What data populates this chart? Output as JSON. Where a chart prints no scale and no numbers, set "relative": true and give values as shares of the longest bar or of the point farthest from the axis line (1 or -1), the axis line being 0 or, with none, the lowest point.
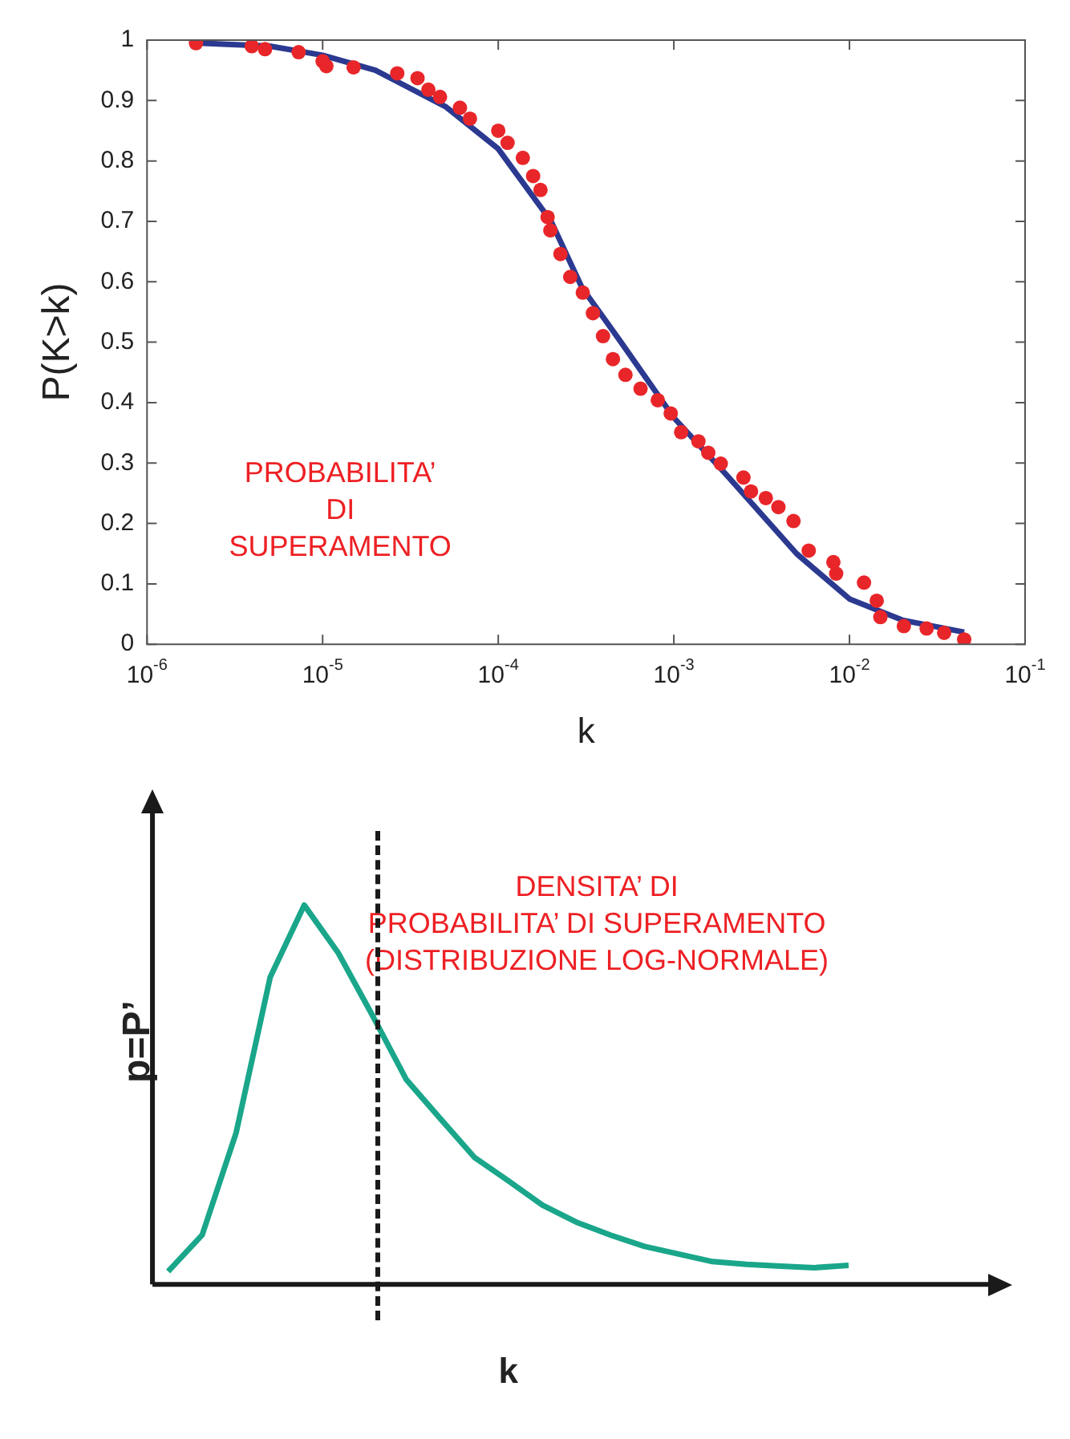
{
  "chart_data": [
    {
      "type": "scatter",
      "xlabel": "k",
      "ylabel": "P(K>k)",
      "log": "x",
      "grid": false,
      "legend": false,
      "xlim": [
        1e-06,
        0.1
      ],
      "xticks": [
        {
          "value": 1e-06,
          "label": "10$^{-6}$"
        },
        {
          "value": 1e-05,
          "label": "10$^{-5}$"
        },
        {
          "value": 0.0001,
          "label": "10$^{-4}$"
        },
        {
          "value": 0.001,
          "label": "10$^{-3}$"
        },
        {
          "value": 0.01,
          "label": "10$^{-2}$"
        },
        {
          "value": 0.1,
          "label": "10$^{-1}$"
        }
      ],
      "ylim": [
        0,
        1
      ],
      "yticks": [
        0,
        0.1,
        0.2,
        0.3,
        0.4,
        0.5,
        0.6,
        0.7,
        0.8,
        0.9,
        1
      ],
      "annotations": [
        "PROBABILITA’\nDI\nSUPERAMENTO"
      ],
      "series": [
        {
          "marker": "circle",
          "color": "#e8262a",
          "x": [
            1.9e-06,
            3.95e-06,
            4.7e-06,
            7.3e-06,
            1e-05,
            1.05e-05,
            1.5e-05,
            2.66e-05,
            3.47e-05,
            4e-05,
            4.66e-05,
            6.05e-05,
            6.9e-05,
            0.0001,
            0.000113,
            0.000138,
            0.000158,
            0.000174,
            0.000191,
            0.000198,
            0.000226,
            0.000257,
            0.000303,
            0.000346,
            0.000395,
            0.00045,
            0.00053,
            0.000646,
            0.00081,
            0.00096,
            0.0011,
            0.00138,
            0.00157,
            0.00185,
            0.00249,
            0.00275,
            0.00334,
            0.00394,
            0.0048,
            0.00586,
            0.0081,
            0.0084,
            0.0121,
            0.0143,
            0.015,
            0.0204,
            0.0275,
            0.0346,
            0.045
          ],
          "values": [
            0.995,
            0.99,
            0.985,
            0.98,
            0.965,
            0.957,
            0.955,
            0.945,
            0.937,
            0.918,
            0.906,
            0.888,
            0.87,
            0.85,
            0.83,
            0.805,
            0.775,
            0.752,
            0.707,
            0.685,
            0.646,
            0.608,
            0.582,
            0.548,
            0.51,
            0.472,
            0.446,
            0.423,
            0.404,
            0.382,
            0.351,
            0.336,
            0.317,
            0.299,
            0.276,
            0.253,
            0.242,
            0.227,
            0.204,
            0.155,
            0.136,
            0.117,
            0.102,
            0.072,
            0.045,
            0.03,
            0.026,
            0.019,
            0.008
          ]
        },
        {
          "type": "line",
          "marker": "none",
          "line_style": "solid",
          "color": "#2b3990",
          "x": [
            2e-06,
            5e-06,
            1e-05,
            2e-05,
            5e-05,
            0.0001,
            0.0002,
            0.0003,
            0.0005,
            0.001,
            0.002,
            0.005,
            0.01,
            0.02,
            0.045
          ],
          "values": [
            0.995,
            0.99,
            0.975,
            0.95,
            0.89,
            0.82,
            0.7,
            0.59,
            0.5,
            0.375,
            0.28,
            0.15,
            0.075,
            0.04,
            0.02
          ]
        }
      ]
    },
    {
      "type": "line",
      "relative": true,
      "xlabel": "k",
      "ylabel": "p=P’",
      "grid": false,
      "legend": false,
      "annotations": [
        "DENSITA’ DI\nPROBABILITA’ DI SUPERAMENTO\n(DISTRIBUZIONE LOG-NORMALE)"
      ],
      "categories": [
        null,
        null,
        null,
        null,
        null,
        null,
        null,
        null,
        null,
        null,
        null,
        null,
        null,
        null,
        null,
        null,
        null,
        null,
        null,
        null,
        null
      ],
      "series": [
        {
          "type": "line",
          "marker": "none",
          "line_style": "solid",
          "color": "#1aa68a",
          "values": [
            0.034,
            0.13,
            0.4,
            0.81,
            1,
            0.874,
            0.71,
            0.54,
            0.437,
            0.335,
            0.273,
            0.209,
            0.164,
            0.13,
            0.1,
            0.08,
            0.06,
            0.053,
            0.048,
            0.044,
            0.05
          ]
        }
      ]
    }
  ]
}
